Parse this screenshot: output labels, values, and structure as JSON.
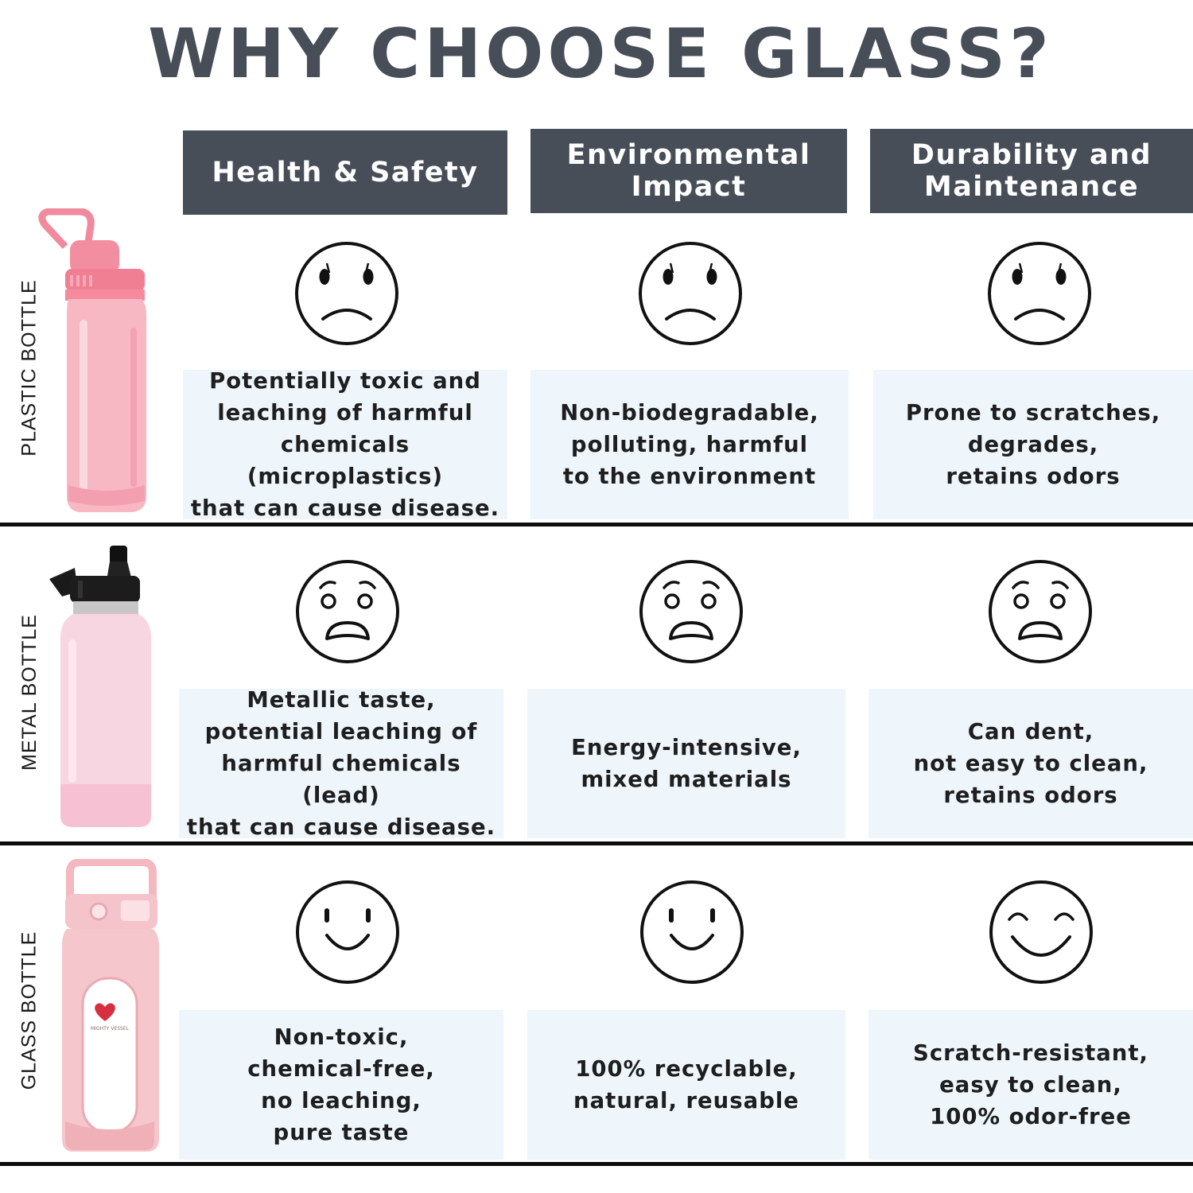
{
  "title": "WHY CHOOSE GLASS?",
  "columns": [
    {
      "label": "Health & Safety"
    },
    {
      "label": "Environmental\nImpact"
    },
    {
      "label": "Durability and\nMaintenance"
    }
  ],
  "rows": [
    {
      "label": "PLASTIC BOTTLE",
      "face_icon": "sad-face-icon",
      "cells": [
        "Potentially toxic and\nleaching of harmful\nchemicals (microplastics)\nthat can cause disease.",
        "Non-biodegradable,\npolluting, harmful\nto the environment",
        "Prone to scratches,\ndegrades,\nretains odors"
      ]
    },
    {
      "label": "METAL BOTTLE",
      "face_icon": "worried-face-icon",
      "cells": [
        "Metallic taste,\npotential leaching of\nharmful chemicals (lead)\nthat can cause disease.",
        "Energy-intensive,\nmixed materials",
        "Can dent,\nnot easy to clean,\nretains odors"
      ]
    },
    {
      "label": "GLASS BOTTLE",
      "face_icon": "smiling-face-icon",
      "cells": [
        "Non-toxic,\nchemical-free,\nno leaching,\npure taste",
        "100% recyclable,\nnatural, reusable",
        "Scratch-resistant,\neasy to clean,\n100% odor-free"
      ]
    }
  ],
  "glass_bottle_logo_text": "MIGHTY VESSEL",
  "colors": {
    "header_bg": "#474e58",
    "title": "#474e58",
    "cell_bg": "#eef5fb",
    "divider": "#0d0d0d",
    "plastic_bottle": "#f7b8c4",
    "metal_bottle": "#f8d6e1",
    "glass_bottle": "#f5c6cb"
  }
}
